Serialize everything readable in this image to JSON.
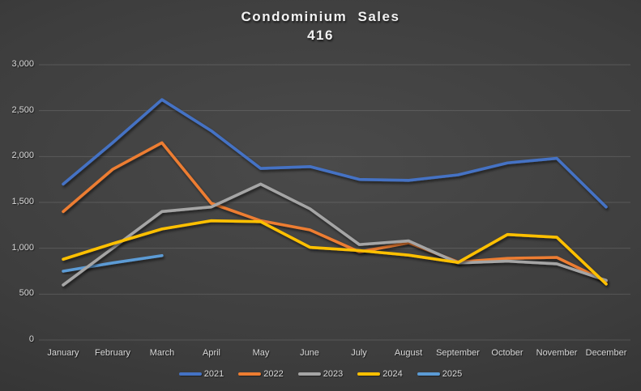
{
  "title": {
    "line1": "Condominium Sales",
    "line2": "416"
  },
  "chart_data": {
    "type": "line",
    "title": "Condominium Sales 416",
    "categories": [
      "January",
      "February",
      "March",
      "April",
      "May",
      "June",
      "July",
      "August",
      "September",
      "October",
      "November",
      "December"
    ],
    "series": [
      {
        "name": "2021",
        "color": "#4472C4",
        "values": [
          1700,
          2150,
          2620,
          2280,
          1870,
          1890,
          1750,
          1740,
          1800,
          1930,
          1980,
          1450
        ]
      },
      {
        "name": "2022",
        "color": "#ED7D31",
        "values": [
          1400,
          1860,
          2150,
          1490,
          1300,
          1200,
          960,
          1060,
          850,
          890,
          900,
          640
        ]
      },
      {
        "name": "2023",
        "color": "#A5A5A5",
        "values": [
          600,
          1000,
          1400,
          1450,
          1700,
          1430,
          1040,
          1080,
          840,
          860,
          830,
          650
        ]
      },
      {
        "name": "2024",
        "color": "#FFC000",
        "values": [
          880,
          1050,
          1210,
          1300,
          1290,
          1010,
          975,
          925,
          845,
          1150,
          1120,
          610
        ]
      },
      {
        "name": "2025",
        "color": "#5B9BD5",
        "values": [
          750,
          840,
          920,
          null,
          null,
          null,
          null,
          null,
          null,
          null,
          null,
          null
        ]
      }
    ],
    "ylim": [
      0,
      3000
    ],
    "ytick_step": 500,
    "yticks_labels": [
      "0",
      "500",
      "1,000",
      "1,500",
      "2,000",
      "2,500",
      "3,000"
    ],
    "xlabel": "",
    "ylabel": "",
    "grid": true,
    "legend_position": "bottom"
  }
}
